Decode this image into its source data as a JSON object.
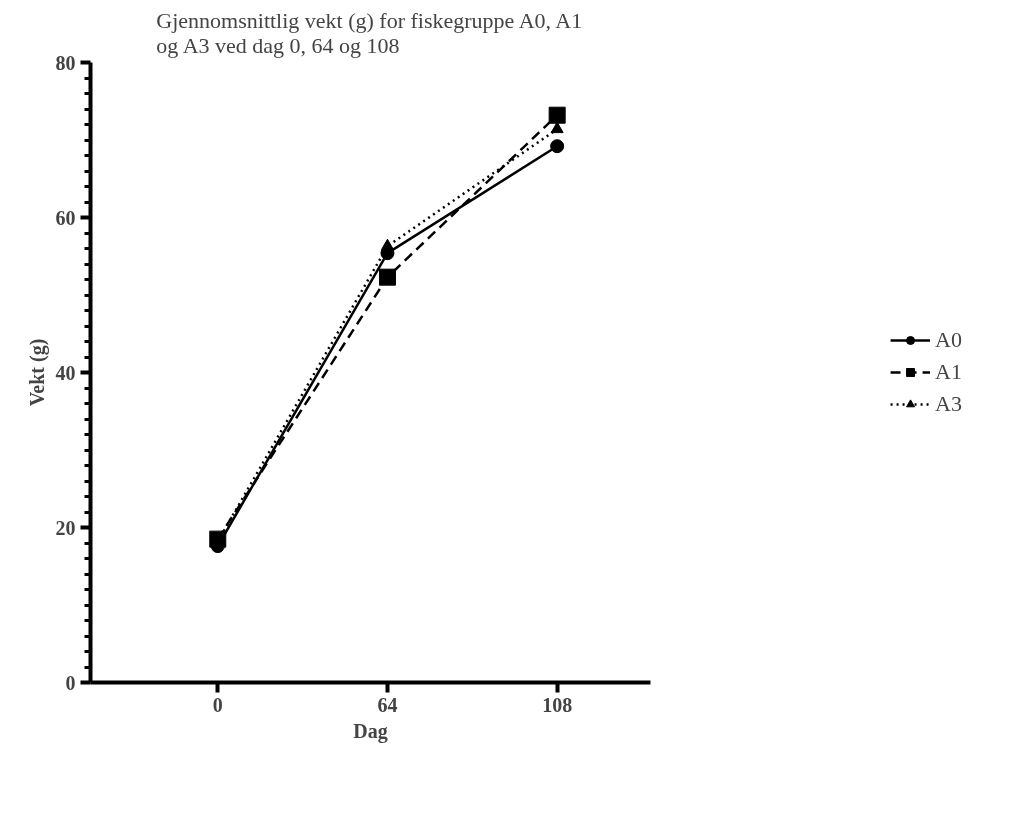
{
  "chart_data": {
    "type": "line",
    "title": "Gjennomsnittlig vekt (g) for fiskegruppe A0, A1\nog A3 ved dag 0, 64 og 108",
    "xlabel": "Dag",
    "ylabel": "Vekt (g)",
    "categories": [
      "0",
      "64",
      "108"
    ],
    "series": [
      {
        "name": "A0",
        "color": "#000000",
        "values": [
          17.6,
          55.4,
          69.2
        ],
        "marker": "circle",
        "line_style": "solid"
      },
      {
        "name": "A1",
        "color": "#000000",
        "values": [
          18.5,
          52.3,
          73.2
        ],
        "marker": "square",
        "line_style": "dashed"
      },
      {
        "name": "A3",
        "color": "#000000",
        "values": [
          18.2,
          56.3,
          71.4
        ],
        "marker": "triangle",
        "line_style": "dotted"
      }
    ],
    "ylim": [
      0,
      80
    ],
    "yticks": [
      0,
      20,
      40,
      60,
      80
    ],
    "grid": false,
    "legend": "right"
  }
}
